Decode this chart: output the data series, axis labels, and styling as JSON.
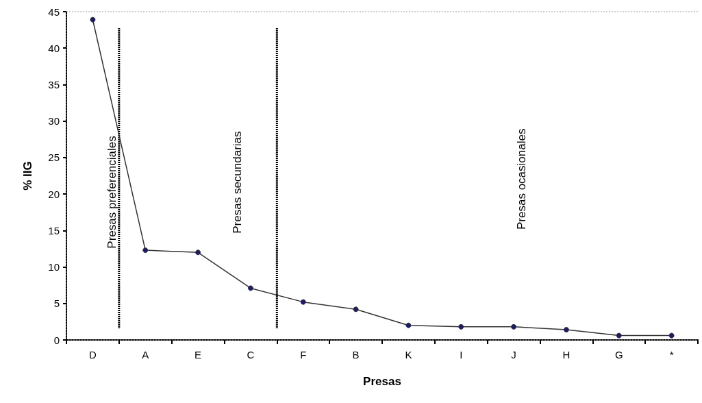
{
  "chart_data": {
    "type": "line",
    "xlabel": "Presas",
    "ylabel": "% IIG",
    "categories": [
      "D",
      "A",
      "E",
      "C",
      "F",
      "B",
      "K",
      "I",
      "J",
      "H",
      "G",
      "*"
    ],
    "series": [
      {
        "color": "#1a1a6e",
        "values": [
          43.9,
          12.3,
          12.0,
          7.1,
          5.2,
          4.2,
          2.0,
          1.8,
          1.8,
          1.4,
          0.6,
          0.6
        ]
      }
    ],
    "ylim": [
      0,
      45
    ],
    "yticks": [
      0,
      5,
      10,
      15,
      20,
      25,
      30,
      35,
      40,
      45
    ],
    "marker": "circle",
    "line_style": "solid",
    "annotations": [
      "Presas preferenciales",
      "Presas secundarias",
      "Presas ocasionales"
    ]
  }
}
